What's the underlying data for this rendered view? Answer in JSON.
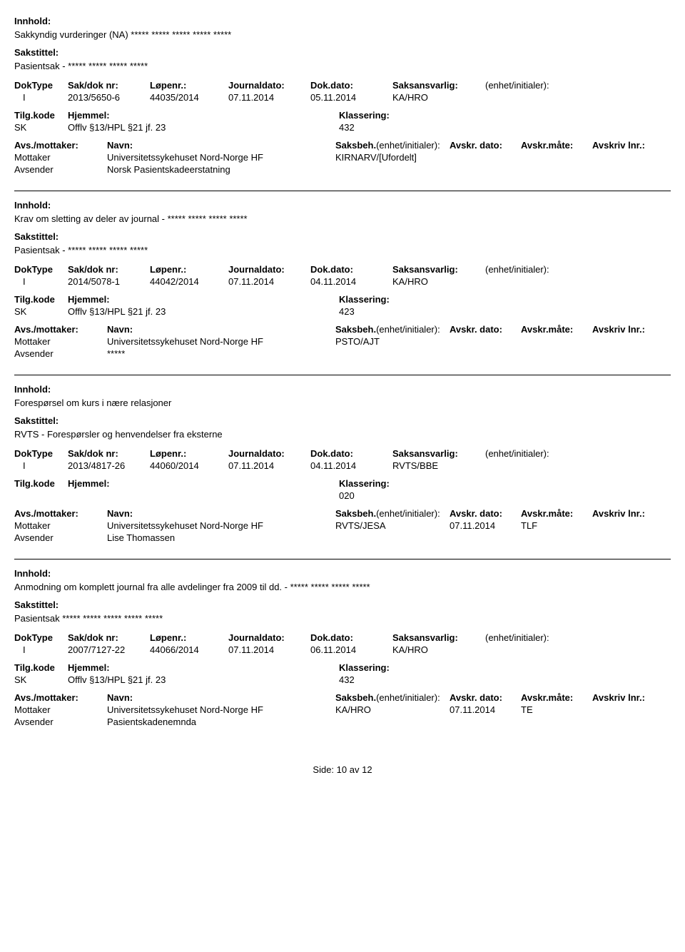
{
  "labels": {
    "innhold": "Innhold:",
    "sakstittel": "Sakstittel:",
    "doktype": "DokType",
    "sakdok": "Sak/dok nr:",
    "lopenr": "Løpenr.:",
    "journaldato": "Journaldato:",
    "dokdato": "Dok.dato:",
    "saksansvarlig": "Saksansvarlig:",
    "enhet": "(enhet/initialer):",
    "tilgkode": "Tilg.kode",
    "hjemmel": "Hjemmel:",
    "klassering": "Klassering:",
    "avsmottaker": "Avs./mottaker:",
    "navn": "Navn:",
    "saksbeh": "Saksbeh.",
    "saksbeh_enhet": "(enhet/initialer):",
    "avskr_dato": "Avskr. dato:",
    "avskr_mate": "Avskr.måte:",
    "avskriv_lnr": "Avskriv lnr.:",
    "mottaker": "Mottaker",
    "avsender": "Avsender"
  },
  "records": [
    {
      "innhold": "Sakkyndig vurderinger (NA) ***** ***** ***** ***** *****",
      "sakstittel": "Pasientsak - ***** ***** ***** *****",
      "doktype": "I",
      "sakdok": "2013/5650-6",
      "lopenr": "44035/2014",
      "journaldato": "07.11.2014",
      "dokdato": "05.11.2014",
      "saksansvarlig": "KA/HRO",
      "enhet": "",
      "tilgkode": "SK",
      "hjemmel": "Offlv §13/HPL §21 jf. 23",
      "klassering": "432",
      "mottaker_navn": "Universitetssykehuset Nord-Norge HF",
      "saksbeh": "KIRNARV/[Ufordelt]",
      "avskr_dato": "",
      "avskr_mate": "",
      "avsender_navn": "Norsk Pasientskadeerstatning"
    },
    {
      "innhold": "Krav om sletting av deler av journal - ***** ***** ***** *****",
      "sakstittel": "Pasientsak - ***** ***** ***** *****",
      "doktype": "I",
      "sakdok": "2014/5078-1",
      "lopenr": "44042/2014",
      "journaldato": "07.11.2014",
      "dokdato": "04.11.2014",
      "saksansvarlig": "KA/HRO",
      "enhet": "",
      "tilgkode": "SK",
      "hjemmel": "Offlv §13/HPL §21 jf. 23",
      "klassering": "423",
      "mottaker_navn": "Universitetssykehuset Nord-Norge HF",
      "saksbeh": "PSTO/AJT",
      "avskr_dato": "",
      "avskr_mate": "",
      "avsender_navn": "*****"
    },
    {
      "innhold": "Forespørsel om kurs i nære relasjoner",
      "sakstittel": "RVTS - Forespørsler og henvendelser fra eksterne",
      "doktype": "I",
      "sakdok": "2013/4817-26",
      "lopenr": "44060/2014",
      "journaldato": "07.11.2014",
      "dokdato": "04.11.2014",
      "saksansvarlig": "RVTS/BBE",
      "enhet": "",
      "tilgkode": "",
      "hjemmel": "",
      "klassering": "020",
      "mottaker_navn": "Universitetssykehuset Nord-Norge HF",
      "saksbeh": "RVTS/JESA",
      "avskr_dato": "07.11.2014",
      "avskr_mate": "TLF",
      "avsender_navn": "Lise Thomassen"
    },
    {
      "innhold": "Anmodning om komplett journal fra alle avdelinger fra 2009 til dd. - ***** ***** ***** *****",
      "sakstittel": "Pasientsak ***** ***** ***** ***** *****",
      "doktype": "I",
      "sakdok": "2007/7127-22",
      "lopenr": "44066/2014",
      "journaldato": "07.11.2014",
      "dokdato": "06.11.2014",
      "saksansvarlig": "KA/HRO",
      "enhet": "",
      "tilgkode": "SK",
      "hjemmel": "Offlv §13/HPL §21 jf. 23",
      "klassering": "432",
      "mottaker_navn": "Universitetssykehuset Nord-Norge HF",
      "saksbeh": "KA/HRO",
      "avskr_dato": "07.11.2014",
      "avskr_mate": "TE",
      "avsender_navn": "Pasientskadenemnda"
    }
  ],
  "footer": {
    "side": "Side:",
    "page": "10",
    "av": "av",
    "total": "12"
  }
}
